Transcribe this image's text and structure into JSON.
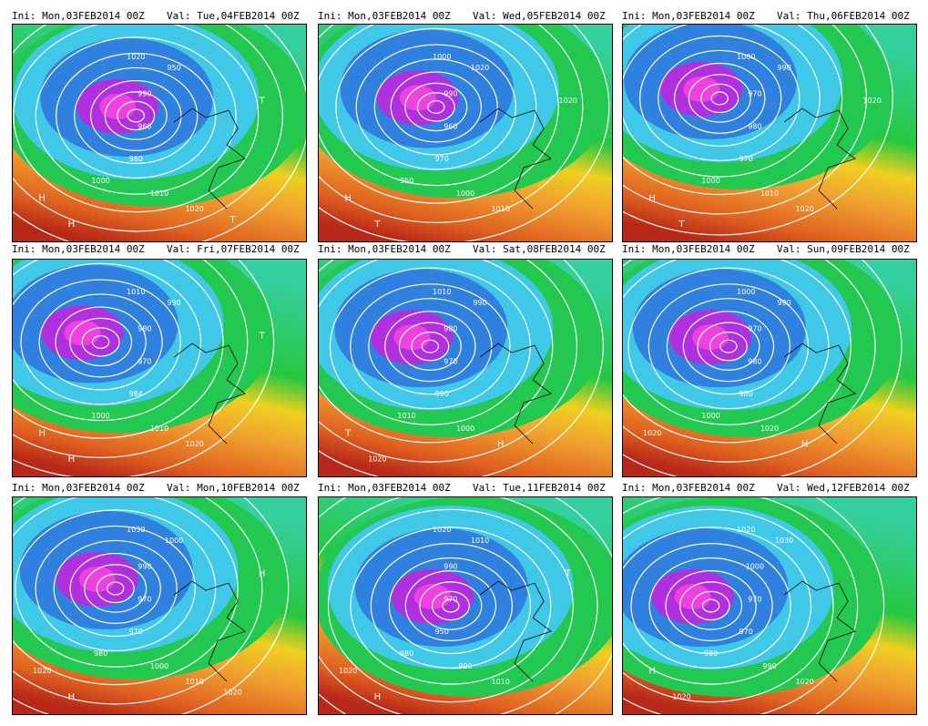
{
  "panels": [
    {
      "init": "Ini: Mon,03FEB2014 00Z",
      "valid": "Val: Tue,04FEB2014 00Z",
      "labels": [
        "1020",
        "950",
        "990",
        "960",
        "980",
        "1000",
        "1010",
        "1020",
        "H",
        "H",
        "T",
        "T"
      ]
    },
    {
      "init": "Ini: Mon,03FEB2014 00Z",
      "valid": "Val: Wed,05FEB2014 00Z",
      "labels": [
        "1000",
        "1020",
        "990",
        "960",
        "970",
        "950",
        "1000",
        "1010",
        "H",
        "T",
        "1020"
      ]
    },
    {
      "init": "Ini: Mon,03FEB2014 00Z",
      "valid": "Val: Thu,06FEB2014 00Z",
      "labels": [
        "1000",
        "990",
        "970",
        "980",
        "970",
        "1000",
        "1010",
        "1020",
        "H",
        "T",
        "1020"
      ]
    },
    {
      "init": "Ini: Mon,03FEB2014 00Z",
      "valid": "Val: Fri,07FEB2014 00Z",
      "labels": [
        "1010",
        "990",
        "980",
        "970",
        "984",
        "1000",
        "1010",
        "1020",
        "H",
        "H",
        "T"
      ]
    },
    {
      "init": "Ini: Mon,03FEB2014 00Z",
      "valid": "Val: Sat,08FEB2014 00Z",
      "labels": [
        "1010",
        "990",
        "980",
        "970",
        "990",
        "1010",
        "1000",
        "H",
        "T",
        "1020"
      ]
    },
    {
      "init": "Ini: Mon,03FEB2014 00Z",
      "valid": "Val: Sun,09FEB2014 00Z",
      "labels": [
        "1000",
        "990",
        "970",
        "980",
        "980",
        "1000",
        "1020",
        "H",
        "1020"
      ]
    },
    {
      "init": "Ini: Mon,03FEB2014 00Z",
      "valid": "Val: Mon,10FEB2014 00Z",
      "labels": [
        "1030",
        "1000",
        "990",
        "970",
        "970",
        "980",
        "1000",
        "1010",
        "1020",
        "H",
        "H",
        "1020"
      ]
    },
    {
      "init": "Ini: Mon,03FEB2014 00Z",
      "valid": "Val: Tue,11FEB2014 00Z",
      "labels": [
        "1020",
        "1010",
        "990",
        "970",
        "950",
        "980",
        "990",
        "1010",
        "1020",
        "H",
        "T"
      ]
    },
    {
      "init": "Ini: Mon,03FEB2014 00Z",
      "valid": "Val: Wed,12FEB2014 00Z",
      "labels": [
        "1020",
        "1030",
        "1000",
        "970",
        "970",
        "980",
        "990",
        "1020",
        "H",
        "1020"
      ]
    }
  ]
}
